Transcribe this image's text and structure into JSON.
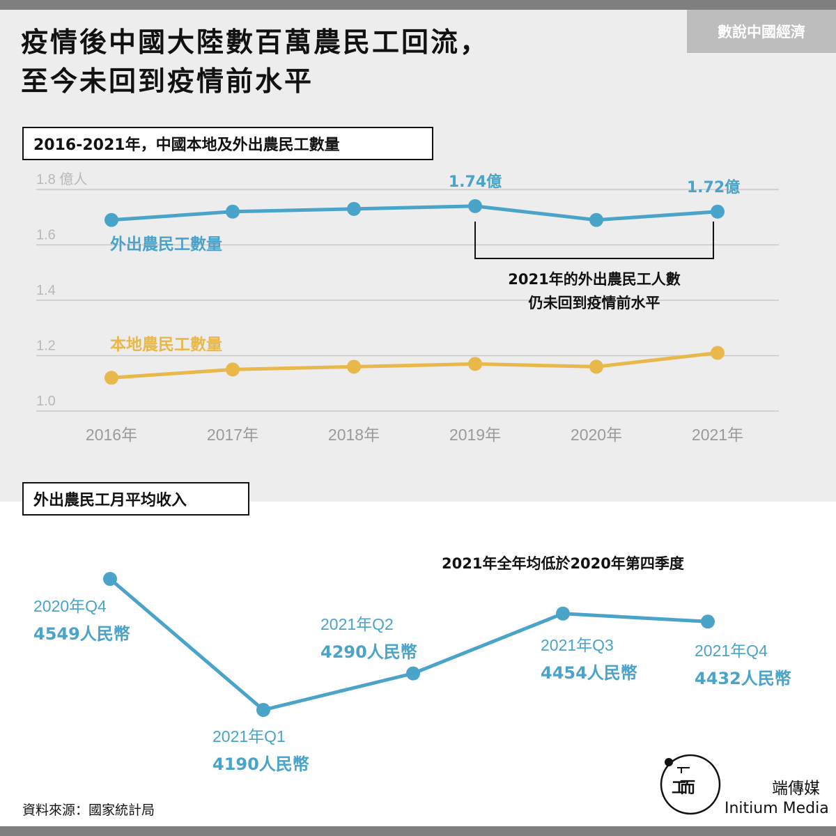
{
  "header": {
    "title_line1": "疫情後中國大陸數百萬農民工回流，",
    "title_line2": "至今未回到疫情前水平",
    "brand_tag": "數說中國經濟"
  },
  "footer": {
    "source": "資料來源：國家統計局",
    "brand_zh": "端傳媒",
    "brand_en": "Initium Media"
  },
  "chart_data": [
    {
      "type": "line",
      "title": "2016-2021年，中國本地及外出農民工數量",
      "x": [
        "2016年",
        "2017年",
        "2018年",
        "2019年",
        "2020年",
        "2021年"
      ],
      "ylim": [
        1.0,
        1.8
      ],
      "y_ticks": [
        "1.0",
        "1.2",
        "1.4",
        "1.6",
        "1.8 億人"
      ],
      "grid": true,
      "series": [
        {
          "name": "外出農民工數量",
          "color": "#4aa3c8",
          "values": [
            1.69,
            1.72,
            1.73,
            1.74,
            1.69,
            1.72
          ]
        },
        {
          "name": "本地農民工數量",
          "color": "#e8b84a",
          "values": [
            1.12,
            1.15,
            1.16,
            1.17,
            1.16,
            1.21
          ]
        }
      ],
      "data_labels": [
        {
          "series": 0,
          "index": 3,
          "text": "1.74億"
        },
        {
          "series": 0,
          "index": 5,
          "text": "1.72億"
        }
      ],
      "annotation": {
        "from_index": 3,
        "to_index": 5,
        "lines": [
          "2021年的外出農民工人數",
          "仍未回到疫情前水平"
        ]
      }
    },
    {
      "type": "line",
      "title": "外出農民工月平均收入",
      "color": "#4aa3c8",
      "annotation": "2021年全年均低於2020年第四季度",
      "points": [
        {
          "period": "2020年Q4",
          "value": 4549,
          "label": "4549人民幣"
        },
        {
          "period": "2021年Q1",
          "value": 4190,
          "label": "4190人民幣"
        },
        {
          "period": "2021年Q2",
          "value": 4290,
          "label": "4290人民幣"
        },
        {
          "period": "2021年Q3",
          "value": 4454,
          "label": "4454人民幣"
        },
        {
          "period": "2021年Q4",
          "value": 4432,
          "label": "4432人民幣"
        }
      ]
    }
  ]
}
